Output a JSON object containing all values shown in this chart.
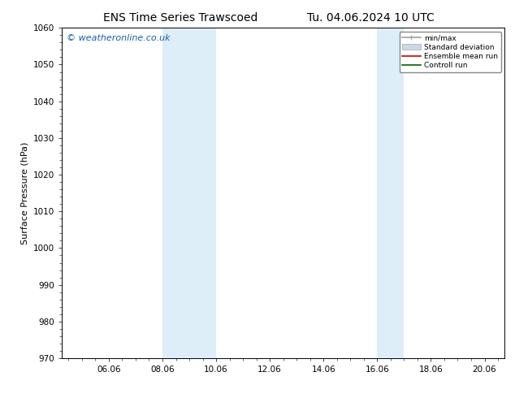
{
  "title_left": "ENS Time Series Trawscoed",
  "title_right": "Tu. 04.06.2024 10 UTC",
  "ylabel": "Surface Pressure (hPa)",
  "ylim": [
    970,
    1060
  ],
  "yticks": [
    970,
    980,
    990,
    1000,
    1010,
    1020,
    1030,
    1040,
    1050,
    1060
  ],
  "xlim_start": 4.25,
  "xlim_end": 20.75,
  "xtick_positions": [
    6.0,
    8.0,
    10.0,
    12.0,
    14.0,
    16.0,
    18.0,
    20.0
  ],
  "xtick_labels": [
    "06.06",
    "08.06",
    "10.06",
    "12.06",
    "14.06",
    "16.06",
    "18.06",
    "20.06"
  ],
  "shaded_bands": [
    {
      "x_start": 8.0,
      "x_end": 10.0,
      "color": "#ddeef8"
    },
    {
      "x_start": 16.0,
      "x_end": 17.0,
      "color": "#ddeef8"
    }
  ],
  "watermark_text": "© weatheronline.co.uk",
  "watermark_color": "#1a5ca8",
  "legend_items": [
    {
      "label": "min/max",
      "color": "#a0a0a0",
      "lw": 1.2,
      "ls": "-",
      "type": "minmax"
    },
    {
      "label": "Standard deviation",
      "color": "#c8d8e8",
      "lw": 5,
      "ls": "-",
      "type": "band"
    },
    {
      "label": "Ensemble mean run",
      "color": "#cc0000",
      "lw": 1.2,
      "ls": "-",
      "type": "line"
    },
    {
      "label": "Controll run",
      "color": "#006400",
      "lw": 1.2,
      "ls": "-",
      "type": "line"
    }
  ],
  "bg_color": "#ffffff",
  "title_fontsize": 10,
  "label_fontsize": 8,
  "tick_fontsize": 7.5,
  "watermark_fontsize": 8
}
